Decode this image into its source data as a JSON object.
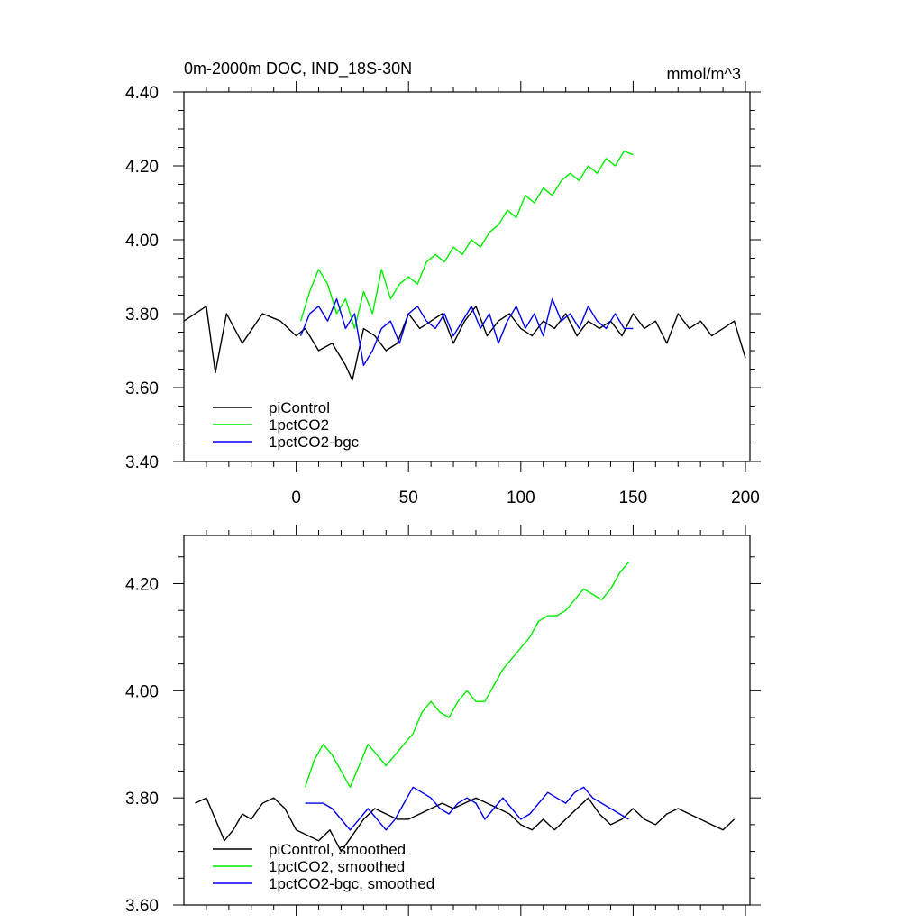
{
  "chart_data": [
    {
      "type": "line",
      "title": "0m-2000m DOC, IND_18S-30N",
      "units": "mmol/m^3",
      "xlim": [
        -50,
        202
      ],
      "ylim": [
        3.4,
        4.4
      ],
      "y_ticks": [
        "3.40",
        "3.60",
        "3.80",
        "4.00",
        "4.20",
        "4.40"
      ],
      "x_ticks": [
        "0",
        "50",
        "100",
        "150",
        "200"
      ],
      "legend_position": "bottom-left",
      "grid": false,
      "series": [
        {
          "name": "piControl",
          "color": "#000000",
          "x": [
            -50,
            -40,
            -36,
            -31,
            -24,
            -15,
            -7,
            0,
            4,
            10,
            16,
            22,
            25,
            30,
            35,
            40,
            45,
            50,
            55,
            60,
            65,
            70,
            75,
            80,
            85,
            90,
            95,
            100,
            105,
            110,
            115,
            120,
            125,
            130,
            135,
            140,
            145,
            150,
            155,
            160,
            165,
            170,
            175,
            180,
            185,
            190,
            195,
            200
          ],
          "y": [
            3.78,
            3.82,
            3.64,
            3.8,
            3.72,
            3.8,
            3.78,
            3.74,
            3.76,
            3.7,
            3.72,
            3.66,
            3.62,
            3.76,
            3.74,
            3.7,
            3.72,
            3.8,
            3.76,
            3.78,
            3.8,
            3.72,
            3.78,
            3.82,
            3.74,
            3.78,
            3.8,
            3.76,
            3.74,
            3.78,
            3.76,
            3.8,
            3.74,
            3.78,
            3.76,
            3.78,
            3.74,
            3.8,
            3.76,
            3.78,
            3.72,
            3.8,
            3.76,
            3.78,
            3.74,
            3.76,
            3.78,
            3.68
          ]
        },
        {
          "name": "1pctCO2",
          "color": "#00ee00",
          "x": [
            2,
            6,
            10,
            14,
            18,
            22,
            26,
            30,
            34,
            38,
            42,
            46,
            50,
            54,
            58,
            62,
            66,
            70,
            74,
            78,
            82,
            86,
            90,
            94,
            98,
            102,
            106,
            110,
            114,
            118,
            122,
            126,
            130,
            134,
            138,
            142,
            146,
            150
          ],
          "y": [
            3.78,
            3.86,
            3.92,
            3.88,
            3.8,
            3.84,
            3.76,
            3.86,
            3.8,
            3.92,
            3.84,
            3.88,
            3.9,
            3.88,
            3.94,
            3.96,
            3.94,
            3.98,
            3.96,
            4.0,
            3.98,
            4.02,
            4.04,
            4.08,
            4.06,
            4.12,
            4.1,
            4.14,
            4.12,
            4.16,
            4.18,
            4.16,
            4.2,
            4.18,
            4.22,
            4.2,
            4.24,
            4.23
          ]
        },
        {
          "name": "1pctCO2-bgc",
          "color": "#0000ee",
          "x": [
            2,
            6,
            10,
            14,
            18,
            22,
            26,
            30,
            34,
            38,
            42,
            46,
            50,
            54,
            58,
            62,
            66,
            70,
            74,
            78,
            82,
            86,
            90,
            94,
            98,
            102,
            106,
            110,
            114,
            118,
            122,
            126,
            130,
            134,
            138,
            142,
            146,
            150
          ],
          "y": [
            3.74,
            3.8,
            3.82,
            3.78,
            3.84,
            3.76,
            3.8,
            3.66,
            3.7,
            3.76,
            3.78,
            3.72,
            3.8,
            3.82,
            3.78,
            3.76,
            3.8,
            3.74,
            3.78,
            3.82,
            3.76,
            3.8,
            3.72,
            3.78,
            3.82,
            3.76,
            3.8,
            3.74,
            3.84,
            3.78,
            3.8,
            3.76,
            3.82,
            3.78,
            3.76,
            3.8,
            3.76,
            3.76
          ]
        }
      ]
    },
    {
      "type": "line",
      "title": "",
      "xlim": [
        -50,
        202
      ],
      "ylim": [
        3.6,
        4.29
      ],
      "y_ticks": [
        "3.60",
        "3.80",
        "4.00",
        "4.20"
      ],
      "x_ticks": [],
      "legend_position": "bottom-left",
      "grid": false,
      "series": [
        {
          "name": "piControl, smoothed",
          "color": "#000000",
          "x": [
            -45,
            -40,
            -36,
            -32,
            -28,
            -24,
            -20,
            -15,
            -10,
            -5,
            0,
            5,
            10,
            15,
            20,
            25,
            30,
            35,
            40,
            45,
            50,
            55,
            60,
            65,
            70,
            75,
            80,
            85,
            90,
            95,
            100,
            105,
            110,
            115,
            120,
            125,
            130,
            135,
            140,
            145,
            150,
            155,
            160,
            165,
            170,
            175,
            180,
            185,
            190,
            195
          ],
          "y": [
            3.79,
            3.8,
            3.76,
            3.72,
            3.74,
            3.77,
            3.76,
            3.79,
            3.8,
            3.78,
            3.74,
            3.73,
            3.72,
            3.74,
            3.7,
            3.73,
            3.76,
            3.78,
            3.77,
            3.76,
            3.76,
            3.77,
            3.78,
            3.79,
            3.78,
            3.79,
            3.8,
            3.79,
            3.78,
            3.77,
            3.75,
            3.74,
            3.76,
            3.74,
            3.76,
            3.78,
            3.8,
            3.77,
            3.75,
            3.76,
            3.78,
            3.76,
            3.75,
            3.77,
            3.78,
            3.77,
            3.76,
            3.75,
            3.74,
            3.76
          ]
        },
        {
          "name": "1pctCO2, smoothed",
          "color": "#00ee00",
          "x": [
            4,
            8,
            12,
            16,
            20,
            24,
            28,
            32,
            36,
            40,
            44,
            48,
            52,
            56,
            60,
            64,
            68,
            72,
            76,
            80,
            84,
            88,
            92,
            96,
            100,
            104,
            108,
            112,
            116,
            120,
            124,
            128,
            132,
            136,
            140,
            144,
            148
          ],
          "y": [
            3.82,
            3.87,
            3.9,
            3.88,
            3.85,
            3.82,
            3.86,
            3.9,
            3.88,
            3.86,
            3.88,
            3.9,
            3.92,
            3.96,
            3.98,
            3.96,
            3.95,
            3.98,
            4.0,
            3.98,
            3.98,
            4.01,
            4.04,
            4.06,
            4.08,
            4.1,
            4.13,
            4.14,
            4.14,
            4.15,
            4.17,
            4.19,
            4.18,
            4.17,
            4.19,
            4.22,
            4.24
          ]
        },
        {
          "name": "1pctCO2-bgc, smoothed",
          "color": "#0000ee",
          "x": [
            4,
            8,
            12,
            16,
            20,
            24,
            28,
            32,
            36,
            40,
            44,
            48,
            52,
            56,
            60,
            64,
            68,
            72,
            76,
            80,
            84,
            88,
            92,
            96,
            100,
            104,
            108,
            112,
            116,
            120,
            124,
            128,
            132,
            136,
            140,
            144,
            148
          ],
          "y": [
            3.79,
            3.79,
            3.79,
            3.78,
            3.76,
            3.74,
            3.76,
            3.78,
            3.76,
            3.74,
            3.76,
            3.79,
            3.82,
            3.81,
            3.8,
            3.78,
            3.77,
            3.79,
            3.8,
            3.79,
            3.76,
            3.78,
            3.8,
            3.78,
            3.76,
            3.77,
            3.79,
            3.81,
            3.8,
            3.79,
            3.81,
            3.82,
            3.8,
            3.79,
            3.78,
            3.77,
            3.76
          ]
        }
      ]
    }
  ]
}
